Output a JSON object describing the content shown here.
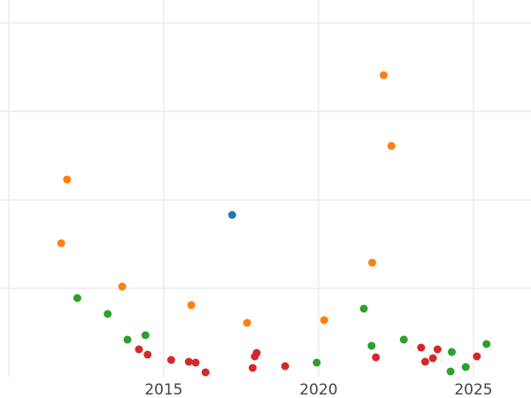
{
  "chart_data": {
    "type": "scatter",
    "title": "",
    "xlabel": "",
    "ylabel": "",
    "xlim": [
      2010,
      2026.5
    ],
    "ylim": [
      0,
      4
    ],
    "grid": true,
    "x_ticks": [
      2015,
      2020,
      2025
    ],
    "x_tick_labels": [
      "2015",
      "2020",
      "2025"
    ],
    "x_gridlines": [
      2010,
      2015,
      2020,
      2025
    ],
    "y_gridlines": [
      1,
      2,
      3,
      4
    ],
    "y_tick_labels_visible": false,
    "legend": "none",
    "series": [
      {
        "color": "#1f77b4",
        "points": [
          [
            2017.21,
            1.83
          ]
        ]
      },
      {
        "color": "#ff7f0e",
        "points": [
          [
            2022.1,
            3.41
          ],
          [
            2022.35,
            2.61
          ],
          [
            2011.88,
            2.23
          ],
          [
            2011.69,
            1.51
          ],
          [
            2021.73,
            1.29
          ],
          [
            2013.66,
            1.02
          ],
          [
            2015.89,
            0.81
          ],
          [
            2017.69,
            0.61
          ],
          [
            2020.18,
            0.64
          ]
        ]
      },
      {
        "color": "#2ca02c",
        "points": [
          [
            2012.21,
            0.89
          ],
          [
            2013.19,
            0.71
          ],
          [
            2013.83,
            0.42
          ],
          [
            2014.41,
            0.47
          ],
          [
            2019.94,
            0.16
          ],
          [
            2021.46,
            0.77
          ],
          [
            2021.71,
            0.35
          ],
          [
            2022.75,
            0.42
          ],
          [
            2024.3,
            0.28
          ],
          [
            2024.26,
            0.06
          ],
          [
            2024.75,
            0.11
          ],
          [
            2025.42,
            0.37
          ]
        ]
      },
      {
        "color": "#d62728",
        "points": [
          [
            2014.2,
            0.31
          ],
          [
            2014.48,
            0.25
          ],
          [
            2015.24,
            0.19
          ],
          [
            2015.81,
            0.17
          ],
          [
            2016.03,
            0.16
          ],
          [
            2016.35,
            0.05
          ],
          [
            2017.87,
            0.1
          ],
          [
            2017.94,
            0.23
          ],
          [
            2018.0,
            0.27
          ],
          [
            2018.92,
            0.12
          ],
          [
            2021.85,
            0.22
          ],
          [
            2023.31,
            0.33
          ],
          [
            2023.44,
            0.17
          ],
          [
            2023.69,
            0.21
          ],
          [
            2023.84,
            0.31
          ],
          [
            2025.11,
            0.23
          ]
        ]
      }
    ]
  }
}
